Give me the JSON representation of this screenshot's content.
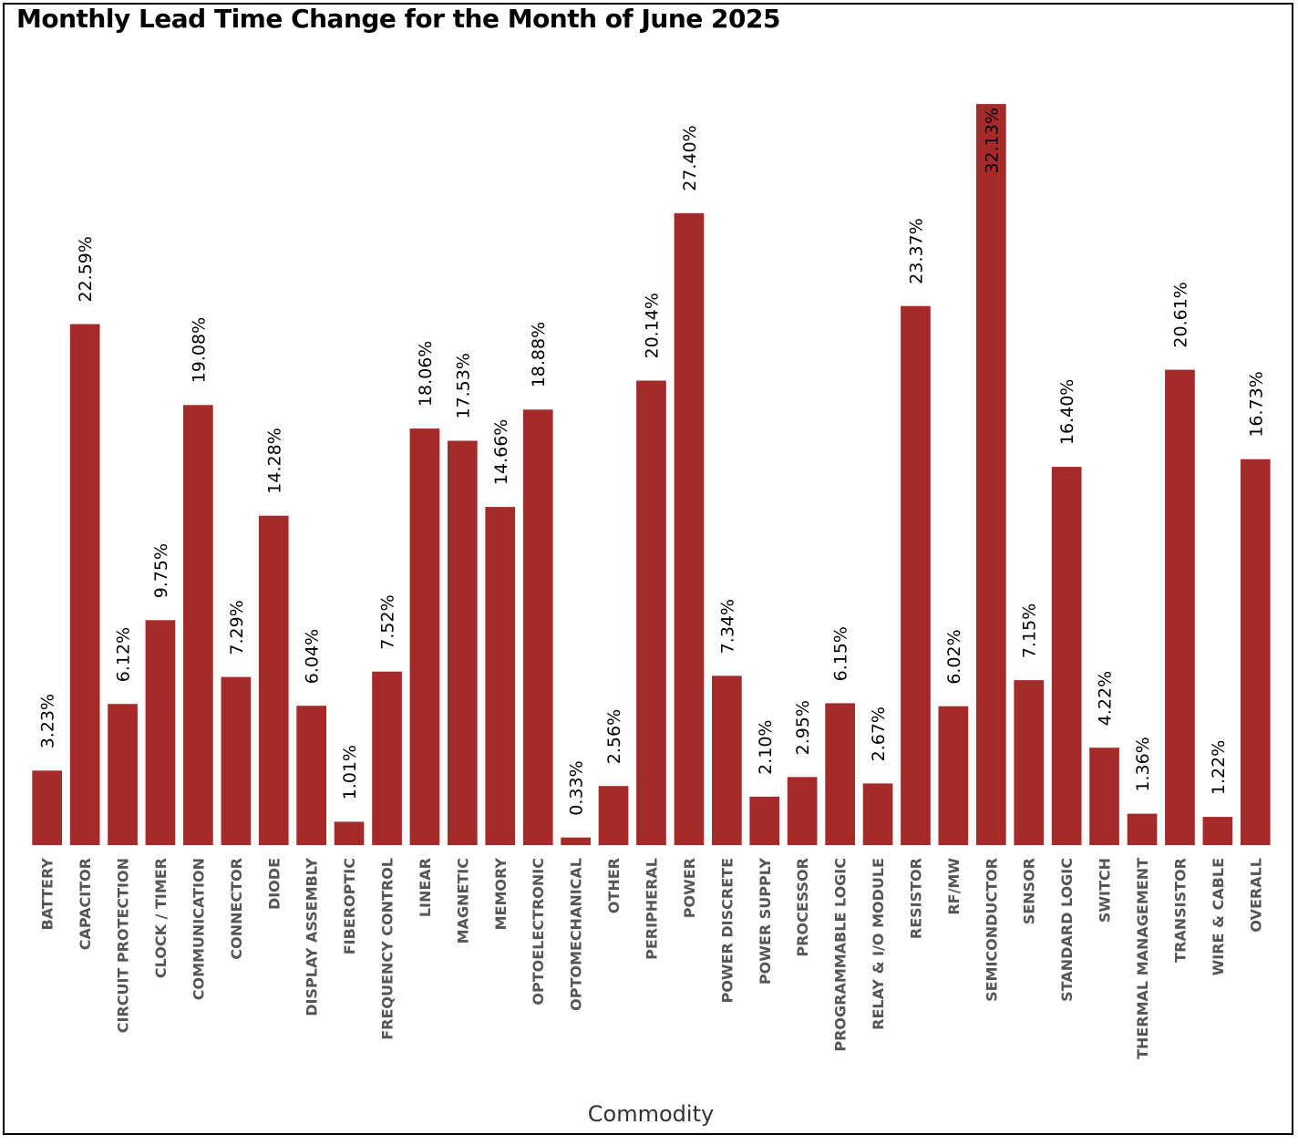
{
  "chart_data": {
    "type": "bar",
    "title": "Monthly Lead Time Change for the Month of June 2025",
    "xlabel": "Commodity",
    "ylabel": "",
    "ylim": [
      0,
      33.5
    ],
    "grid": false,
    "bar_color": "#a52a2a",
    "categories": [
      "BATTERY",
      "CAPACITOR",
      "CIRCUIT PROTECTION",
      "CLOCK / TIMER",
      "COMMUNICATION",
      "CONNECTOR",
      "DIODE",
      "DISPLAY ASSEMBLY",
      "FIBEROPTIC",
      "FREQUENCY CONTROL",
      "LINEAR",
      "MAGNETIC",
      "MEMORY",
      "OPTOELECTRONIC",
      "OPTOMECHANICAL",
      "OTHER",
      "PERIPHERAL",
      "POWER",
      "POWER DISCRETE",
      "POWER SUPPLY",
      "PROCESSOR",
      "PROGRAMMABLE LOGIC",
      "RELAY & I/O MODULE",
      "RESISTOR",
      "RF/MW",
      "SEMICONDUCTOR",
      "SENSOR",
      "STANDARD LOGIC",
      "SWITCH",
      "THERMAL MANAGEMENT",
      "TRANSISTOR",
      "WIRE & CABLE",
      "OVERALL"
    ],
    "values": [
      3.23,
      22.59,
      6.12,
      9.75,
      19.08,
      7.29,
      14.28,
      6.04,
      1.01,
      7.52,
      18.06,
      17.53,
      14.66,
      18.88,
      0.33,
      2.56,
      20.14,
      27.4,
      7.34,
      2.1,
      2.95,
      6.15,
      2.67,
      23.37,
      6.02,
      32.13,
      7.15,
      16.4,
      4.22,
      1.36,
      20.61,
      1.22,
      16.73
    ],
    "data_labels": [
      "3.23%",
      "22.59%",
      "6.12%",
      "9.75%",
      "19.08%",
      "7.29%",
      "14.28%",
      "6.04%",
      "1.01%",
      "7.52%",
      "18.06%",
      "17.53%",
      "14.66%",
      "18.88%",
      "0.33%",
      "2.56%",
      "20.14%",
      "27.40%",
      "7.34%",
      "2.10%",
      "2.95%",
      "6.15%",
      "2.67%",
      "23.37%",
      "6.02%",
      "32.13%",
      "7.15%",
      "16.40%",
      "4.22%",
      "1.36%",
      "20.61%",
      "1.22%",
      "16.73%"
    ]
  }
}
